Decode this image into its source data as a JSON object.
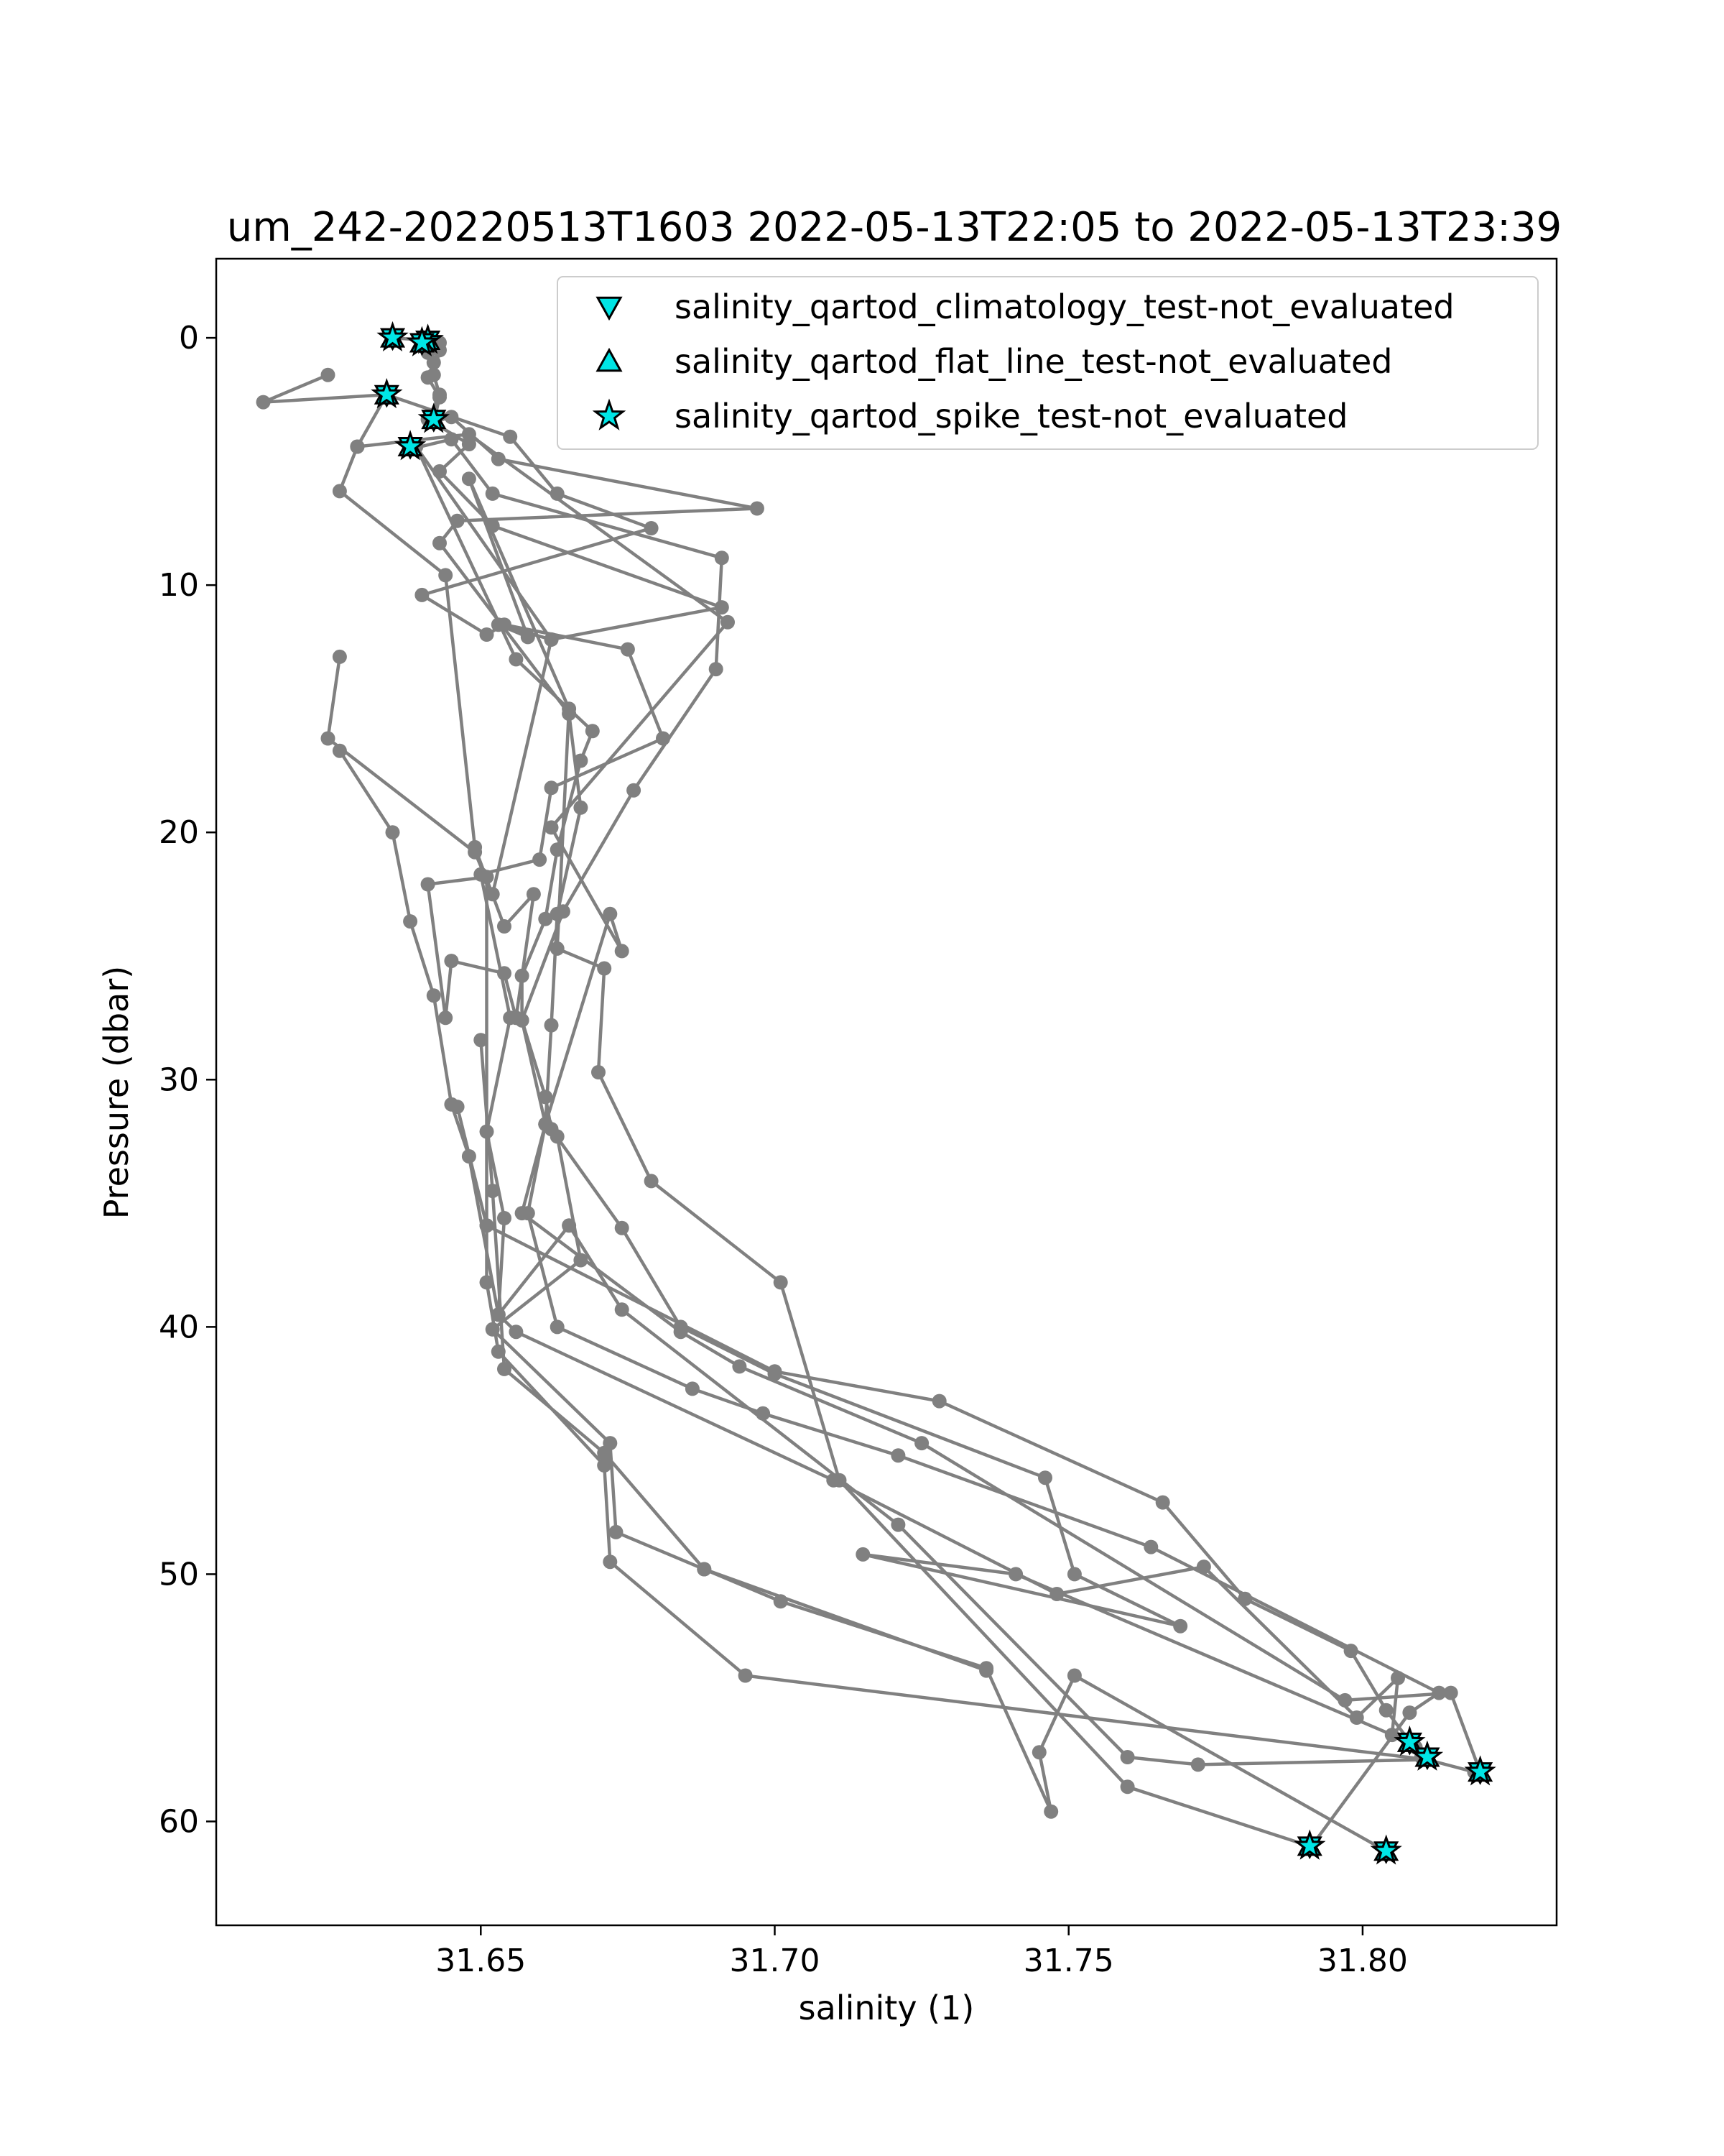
{
  "chart_data": {
    "type": "line",
    "title": "um_242-20220513T1603 2022-05-13T22:05 to 2022-05-13T23:39",
    "xlabel": "salinity (1)",
    "ylabel": "Pressure (dbar)",
    "xlim": [
      31.605,
      31.833
    ],
    "ylim": [
      64.2,
      -3.2
    ],
    "y_inverted": true,
    "x_ticks": [
      31.65,
      31.7,
      31.75,
      31.8
    ],
    "x_tick_labels": [
      "31.65",
      "31.70",
      "31.75",
      "31.80"
    ],
    "y_ticks": [
      0,
      10,
      20,
      30,
      40,
      50,
      60
    ],
    "y_tick_labels": [
      "0",
      "10",
      "20",
      "30",
      "40",
      "50",
      "60"
    ],
    "grid": false,
    "legend_position": "top-right",
    "line_color": "#808080",
    "flag_color": "#00e5e5",
    "series": [
      {
        "points": [
          [
            31.641,
            0.0
          ],
          [
            31.643,
            0.2
          ],
          [
            31.641,
            0.6
          ],
          [
            31.642,
            1.0
          ],
          [
            31.641,
            1.6
          ],
          [
            31.643,
            2.4
          ],
          [
            31.642,
            3.4
          ],
          [
            31.645,
            3.2
          ],
          [
            31.653,
            4.9
          ],
          [
            31.697,
            6.9
          ],
          [
            31.646,
            7.4
          ],
          [
            31.643,
            8.3
          ],
          [
            31.665,
            15.2
          ],
          [
            31.667,
            19.0
          ],
          [
            31.663,
            23.3
          ],
          [
            31.662,
            27.8
          ],
          [
            31.661,
            31.8
          ],
          [
            31.663,
            32.3
          ],
          [
            31.667,
            37.3
          ],
          [
            31.652,
            40.1
          ],
          [
            31.672,
            44.7
          ],
          [
            31.673,
            48.3
          ],
          [
            31.688,
            49.8
          ],
          [
            31.701,
            51.1
          ],
          [
            31.736,
            53.8
          ],
          [
            31.747,
            59.6
          ],
          [
            31.745,
            57.2
          ],
          [
            31.751,
            54.1
          ],
          [
            31.804,
            61.2
          ]
        ]
      },
      {
        "points": [
          [
            31.635,
            0.0
          ],
          [
            31.641,
            0.1
          ],
          [
            31.643,
            0.5
          ],
          [
            31.642,
            1.5
          ],
          [
            31.643,
            2.3
          ],
          [
            31.641,
            3.3
          ],
          [
            31.648,
            4.3
          ],
          [
            31.643,
            5.4
          ],
          [
            31.652,
            7.6
          ],
          [
            31.691,
            10.9
          ],
          [
            31.662,
            12.2
          ],
          [
            31.639,
            4.4
          ],
          [
            31.656,
            13.0
          ],
          [
            31.669,
            15.9
          ],
          [
            31.667,
            17.1
          ],
          [
            31.663,
            20.7
          ],
          [
            31.661,
            23.5
          ],
          [
            31.657,
            25.8
          ],
          [
            31.657,
            27.6
          ],
          [
            31.661,
            30.7
          ],
          [
            31.662,
            32.0
          ],
          [
            31.674,
            36.0
          ],
          [
            31.684,
            40.0
          ],
          [
            31.7,
            41.9
          ],
          [
            31.746,
            46.1
          ],
          [
            31.751,
            50.0
          ],
          [
            31.769,
            52.1
          ],
          [
            31.715,
            49.2
          ],
          [
            31.741,
            50.0
          ],
          [
            31.808,
            56.8
          ]
        ]
      },
      {
        "points": [
          [
            31.624,
            1.5
          ],
          [
            31.613,
            2.6
          ],
          [
            31.634,
            2.3
          ],
          [
            31.655,
            4.0
          ],
          [
            31.663,
            6.3
          ],
          [
            31.679,
            7.7
          ],
          [
            31.64,
            10.4
          ],
          [
            31.651,
            12.0
          ],
          [
            31.654,
            11.6
          ],
          [
            31.675,
            12.6
          ],
          [
            31.681,
            16.2
          ],
          [
            31.662,
            18.2
          ],
          [
            31.66,
            21.1
          ],
          [
            31.65,
            21.7
          ],
          [
            31.655,
            27.5
          ],
          [
            31.651,
            32.1
          ],
          [
            31.654,
            35.6
          ],
          [
            31.653,
            39.5
          ],
          [
            31.665,
            35.9
          ],
          [
            31.674,
            39.3
          ],
          [
            31.721,
            48.0
          ],
          [
            31.76,
            57.4
          ],
          [
            31.772,
            57.7
          ],
          [
            31.811,
            57.5
          ],
          [
            31.819,
            58.0
          ]
        ]
      },
      {
        "points": [
          [
            31.634,
            2.3
          ],
          [
            31.629,
            4.4
          ],
          [
            31.626,
            6.2
          ],
          [
            31.644,
            9.6
          ],
          [
            31.649,
            20.6
          ],
          [
            31.654,
            23.8
          ],
          [
            31.659,
            22.5
          ],
          [
            31.656,
            27.5
          ],
          [
            31.654,
            25.7
          ],
          [
            31.645,
            25.2
          ],
          [
            31.644,
            27.5
          ],
          [
            31.641,
            22.1
          ],
          [
            31.651,
            21.8
          ],
          [
            31.651,
            35.9
          ],
          [
            31.651,
            38.2
          ],
          [
            31.653,
            41.0
          ],
          [
            31.671,
            45.6
          ],
          [
            31.672,
            49.5
          ],
          [
            31.695,
            54.1
          ],
          [
            31.811,
            57.5
          ]
        ]
      },
      {
        "points": [
          [
            31.638,
            4.5
          ],
          [
            31.645,
            4.1
          ],
          [
            31.652,
            6.3
          ],
          [
            31.691,
            8.9
          ],
          [
            31.69,
            13.4
          ],
          [
            31.676,
            18.3
          ],
          [
            31.664,
            23.2
          ],
          [
            31.657,
            27.6
          ],
          [
            31.661,
            31.8
          ],
          [
            31.658,
            35.4
          ],
          [
            31.663,
            40.0
          ],
          [
            31.686,
            42.5
          ],
          [
            31.698,
            43.5
          ],
          [
            31.721,
            45.2
          ],
          [
            31.764,
            48.9
          ],
          [
            31.813,
            54.8
          ],
          [
            31.808,
            55.6
          ],
          [
            31.791,
            61.1
          ]
        ]
      },
      {
        "points": [
          [
            31.626,
            12.9
          ],
          [
            31.624,
            16.2
          ],
          [
            31.649,
            20.8
          ],
          [
            31.652,
            22.5
          ],
          [
            31.662,
            12.2
          ],
          [
            31.653,
            11.6
          ],
          [
            31.658,
            12.1
          ],
          [
            31.648,
            5.7
          ],
          [
            31.665,
            15.0
          ],
          [
            31.663,
            24.7
          ],
          [
            31.671,
            25.5
          ],
          [
            31.67,
            29.7
          ],
          [
            31.679,
            34.1
          ],
          [
            31.701,
            38.2
          ],
          [
            31.711,
            46.2
          ],
          [
            31.76,
            58.6
          ],
          [
            31.791,
            61.0
          ]
        ]
      },
      {
        "points": [
          [
            31.629,
            4.4
          ],
          [
            31.648,
            3.9
          ],
          [
            31.692,
            11.5
          ],
          [
            31.662,
            19.8
          ],
          [
            31.674,
            24.8
          ],
          [
            31.672,
            23.3
          ],
          [
            31.661,
            31.8
          ],
          [
            31.657,
            35.4
          ],
          [
            31.684,
            40.2
          ],
          [
            31.694,
            41.6
          ],
          [
            31.725,
            44.7
          ],
          [
            31.797,
            55.1
          ],
          [
            31.815,
            54.8
          ],
          [
            31.82,
            58.0
          ]
        ]
      },
      {
        "points": [
          [
            31.626,
            16.7
          ],
          [
            31.635,
            20.0
          ],
          [
            31.638,
            23.6
          ],
          [
            31.642,
            26.6
          ],
          [
            31.645,
            31.0
          ],
          [
            31.648,
            33.1
          ],
          [
            31.653,
            39.5
          ],
          [
            31.656,
            40.2
          ],
          [
            31.71,
            46.2
          ],
          [
            31.748,
            50.8
          ],
          [
            31.773,
            49.7
          ],
          [
            31.799,
            55.8
          ],
          [
            31.806,
            54.2
          ],
          [
            31.805,
            56.5
          ],
          [
            31.809,
            57.0
          ]
        ]
      },
      {
        "points": [
          [
            31.646,
            31.1
          ],
          [
            31.651,
            35.9
          ],
          [
            31.7,
            41.8
          ],
          [
            31.728,
            43.0
          ],
          [
            31.766,
            47.1
          ],
          [
            31.78,
            51.0
          ],
          [
            31.798,
            53.1
          ],
          [
            31.804,
            55.5
          ],
          [
            31.81,
            57.4
          ]
        ]
      },
      {
        "points": [
          [
            31.65,
            28.4
          ],
          [
            31.652,
            34.5
          ],
          [
            31.654,
            41.7
          ],
          [
            31.671,
            45.1
          ],
          [
            31.688,
            49.8
          ],
          [
            31.736,
            53.9
          ]
        ]
      }
    ],
    "flags": [
      {
        "points": [
          [
            31.635,
            0.0
          ],
          [
            31.641,
            0.1
          ],
          [
            31.64,
            0.2
          ],
          [
            31.634,
            2.3
          ],
          [
            31.642,
            3.3
          ],
          [
            31.638,
            4.4
          ],
          [
            31.808,
            56.8
          ],
          [
            31.811,
            57.4
          ],
          [
            31.82,
            58.0
          ],
          [
            31.791,
            61.0
          ],
          [
            31.804,
            61.2
          ]
        ]
      }
    ],
    "legend": [
      {
        "marker": "triangle-down",
        "label": "salinity_qartod_climatology_test-not_evaluated"
      },
      {
        "marker": "triangle-up",
        "label": "salinity_qartod_flat_line_test-not_evaluated"
      },
      {
        "marker": "star",
        "label": "salinity_qartod_spike_test-not_evaluated"
      }
    ]
  }
}
